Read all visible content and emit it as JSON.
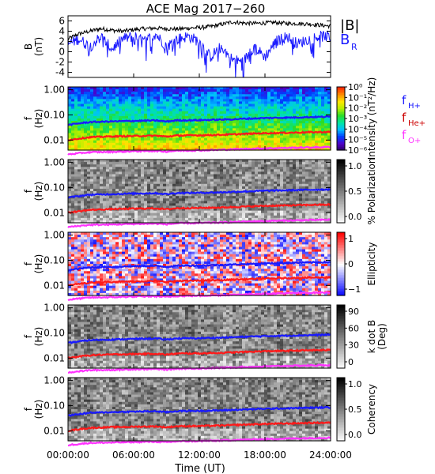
{
  "title": "ACE Mag 2017−260",
  "colors": {
    "B_total": "#000000",
    "B_R": "#1a1aff",
    "f_H": "#1a1aff",
    "f_He": "#ff1a1a",
    "f_O": "#ff33ff",
    "frame": "#000000"
  },
  "legend_top": {
    "total_label": "|B|",
    "radial_label": "B",
    "radial_sub": "R"
  },
  "gyro_legend": [
    {
      "main": "f",
      "sub": "H+",
      "color": "#1a1aff"
    },
    {
      "main": "f",
      "sub": "He+",
      "color": "#cc0000"
    },
    {
      "main": "f",
      "sub": "O+",
      "color": "#ff33ff"
    }
  ],
  "xaxis": {
    "label": "Time (UT)",
    "ticks": [
      "00:00:00",
      "06:00:00",
      "12:00:00",
      "18:00:00",
      "24:00:00"
    ],
    "tick_hours": [
      0,
      6,
      12,
      18,
      24
    ],
    "range_hours": [
      0,
      24
    ]
  },
  "chart_data": [
    {
      "type": "line",
      "panel": "magnetic field",
      "ylabel": "B",
      "ylabel_units": "(nT)",
      "ylim": [
        -5,
        7
      ],
      "yticks": [
        6,
        4,
        2,
        0,
        -2,
        -4
      ],
      "x_unit": "hours UT",
      "series": [
        {
          "name": "|B|",
          "approx_level_nT": 4.5,
          "x": [
            0,
            1,
            2,
            3,
            4,
            5,
            6,
            7,
            8,
            9,
            10,
            11,
            12,
            13,
            14,
            15,
            16,
            17,
            18,
            19,
            20,
            21,
            22,
            23,
            24
          ],
          "values": [
            2.5,
            3.5,
            4.0,
            4.5,
            4.2,
            4.0,
            4.3,
            4.5,
            4.6,
            4.5,
            4.4,
            4.6,
            4.7,
            4.9,
            5.3,
            5.8,
            5.6,
            5.5,
            5.6,
            5.7,
            5.5,
            5.5,
            5.4,
            5.2,
            5.0
          ]
        },
        {
          "name": "B_R",
          "x": [
            0,
            1,
            2,
            3,
            4,
            5,
            6,
            7,
            8,
            9,
            10,
            11,
            12,
            13,
            14,
            15,
            16,
            17,
            18,
            19,
            20,
            21,
            22,
            23,
            24
          ],
          "values": [
            1.5,
            2.5,
            1.0,
            3.0,
            0.5,
            2.5,
            3.0,
            2.0,
            3.5,
            1.0,
            2.5,
            3.0,
            2.0,
            -1.0,
            1.0,
            -1.5,
            -2.0,
            1.0,
            -1.0,
            2.0,
            3.0,
            1.5,
            2.5,
            3.0,
            3.0
          ]
        }
      ]
    },
    {
      "type": "heatmap",
      "panel": "power spectral intensity",
      "ylabel": "f",
      "ylabel_units": "(Hz)",
      "yscale": "log",
      "ylim": [
        0.004,
        1.3
      ],
      "yticks": [
        "1.00",
        "0.10",
        "0.01"
      ],
      "colorbar_label": "Intensity (nT²/Hz)",
      "colorbar_ticks": [
        "10⁰",
        "10⁻¹",
        "10⁻²",
        "10⁻³",
        "10⁻⁴",
        "10⁻⁵",
        "10⁻⁶"
      ],
      "colorbar_range_log10": [
        -6,
        0
      ],
      "palette": "rainbow"
    },
    {
      "type": "heatmap",
      "panel": "degree of polarization",
      "ylabel": "f",
      "ylabel_units": "(Hz)",
      "yscale": "log",
      "colorbar_label": "% Polarization",
      "colorbar_ticks": [
        "1.0",
        "0.5",
        "0.0"
      ],
      "colorbar_range": [
        0,
        1
      ],
      "palette": "grayscale"
    },
    {
      "type": "heatmap",
      "panel": "ellipticity",
      "ylabel": "f",
      "ylabel_units": "(Hz)",
      "yscale": "log",
      "colorbar_label": "Ellipticity",
      "colorbar_ticks": [
        "1",
        "0",
        "−1"
      ],
      "colorbar_range": [
        -1,
        1
      ],
      "palette": "blue-white-red"
    },
    {
      "type": "heatmap",
      "panel": "wave normal angle",
      "ylabel": "f",
      "ylabel_units": "(Hz)",
      "yscale": "log",
      "colorbar_label": "k dot B",
      "colorbar_sublabel": "(Deg)",
      "colorbar_ticks": [
        "90",
        "60",
        "30",
        "0"
      ],
      "colorbar_range": [
        0,
        90
      ],
      "palette": "grayscale"
    },
    {
      "type": "heatmap",
      "panel": "coherency",
      "ylabel": "f",
      "ylabel_units": "(Hz)",
      "yscale": "log",
      "colorbar_label": "Coherency",
      "colorbar_ticks": [
        "1.0",
        "0.5",
        "0.0"
      ],
      "colorbar_range": [
        0,
        1
      ],
      "palette": "grayscale"
    }
  ],
  "gyrofrequency_lines_hz": {
    "x": [
      0,
      2,
      4,
      6,
      8,
      9,
      10,
      12,
      14,
      16,
      18,
      20,
      22,
      24
    ],
    "f_H+": [
      0.04,
      0.052,
      0.055,
      0.058,
      0.06,
      0.055,
      0.061,
      0.062,
      0.065,
      0.07,
      0.075,
      0.078,
      0.082,
      0.085
    ],
    "f_He+": [
      0.01,
      0.013,
      0.014,
      0.0145,
      0.015,
      0.0138,
      0.0152,
      0.0155,
      0.0162,
      0.0175,
      0.0188,
      0.0195,
      0.0205,
      0.021
    ],
    "f_O+": [
      0.0027,
      0.0033,
      0.0034,
      0.0036,
      0.0037,
      0.0035,
      0.0038,
      0.0039,
      0.0041,
      0.0044,
      0.0047,
      0.0049,
      0.0051,
      0.0053
    ]
  }
}
